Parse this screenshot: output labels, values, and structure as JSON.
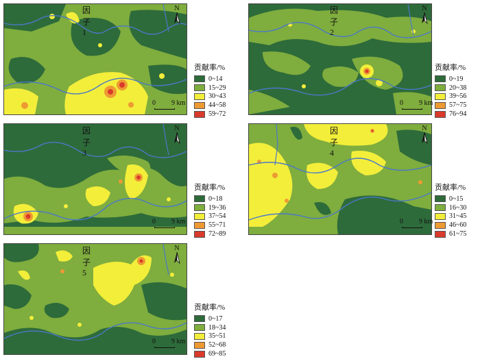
{
  "colors": {
    "class1": "#2e6b3a",
    "class2": "#7fad3e",
    "class3": "#f3ee3a",
    "class4": "#ee9a33",
    "class5": "#d93a2c",
    "river": "#4a78c9"
  },
  "icons": {
    "north": "north-arrow-icon"
  },
  "legend_title": "贡献率/%",
  "panels": [
    {
      "title": "因子1",
      "north": "N",
      "scale": {
        "zero": "0",
        "dist": "9 km"
      },
      "classes": [
        "0~14",
        "15~29",
        "30~43",
        "44~58",
        "59~72"
      ]
    },
    {
      "title": "因子2",
      "north": "N",
      "scale": {
        "zero": "0",
        "dist": "9 km"
      },
      "classes": [
        "0~19",
        "20~38",
        "39~56",
        "57~75",
        "76~94"
      ]
    },
    {
      "title": "因子3",
      "north": "N",
      "scale": {
        "zero": "0",
        "dist": "9 km"
      },
      "classes": [
        "0~18",
        "19~36",
        "37~54",
        "55~71",
        "72~89"
      ]
    },
    {
      "title": "因子4",
      "north": "N",
      "scale": {
        "zero": "0",
        "dist": "9 km"
      },
      "classes": [
        "0~15",
        "16~30",
        "31~45",
        "46~60",
        "61~75"
      ]
    },
    {
      "title": "因子5",
      "north": "N",
      "scale": {
        "zero": "0",
        "dist": "9 km"
      },
      "classes": [
        "0~17",
        "18~34",
        "35~51",
        "52~68",
        "69~85"
      ]
    }
  ]
}
